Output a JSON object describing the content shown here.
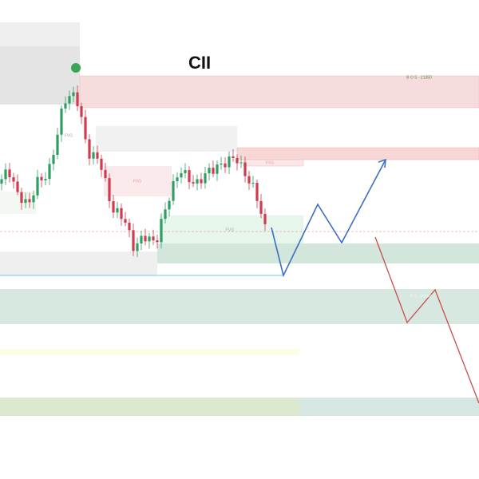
{
  "title": "CII",
  "labels": {
    "bos": "B O S - 21350",
    "fvg": [
      "FVG",
      "FVG",
      "FVG",
      "FVG"
    ],
    "rs": "R.S - 50960"
  }
}
